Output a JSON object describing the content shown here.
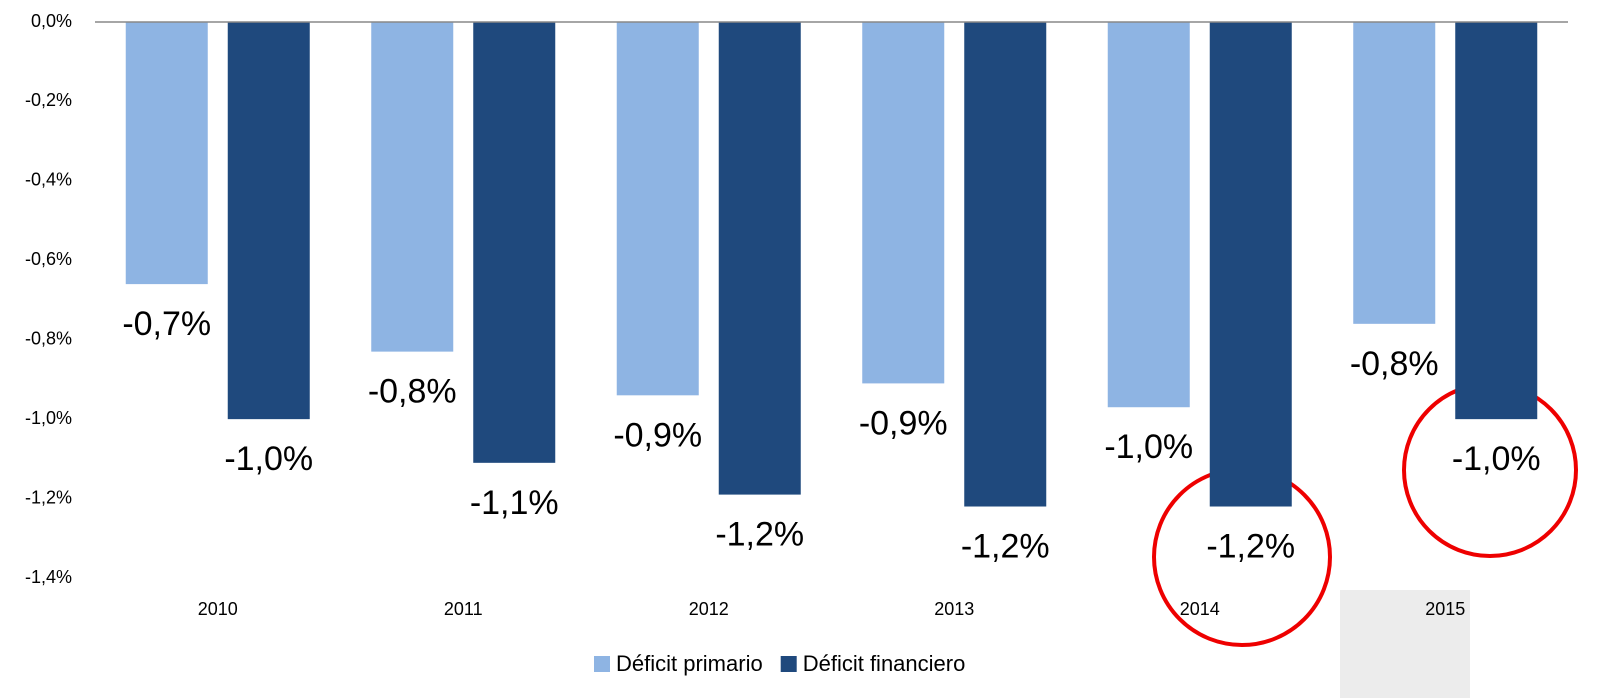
{
  "chart_data": {
    "type": "bar",
    "categories": [
      "2010",
      "2011",
      "2012",
      "2013",
      "2014",
      "2015"
    ],
    "series": [
      {
        "name": "Déficit primario",
        "color": "#8eb4e3",
        "values": [
          -0.66,
          -0.83,
          -0.94,
          -0.91,
          -0.97,
          -0.76
        ],
        "value_labels": [
          "-0,7%",
          "-0,8%",
          "-0,9%",
          "-0,9%",
          "-1,0%",
          "-0,8%"
        ]
      },
      {
        "name": "Déficit financiero",
        "color": "#1f497d",
        "values": [
          -1.0,
          -1.11,
          -1.19,
          -1.22,
          -1.22,
          -1.0
        ],
        "value_labels": [
          "-1,0%",
          "-1,1%",
          "-1,2%",
          "-1,2%",
          "-1,2%",
          "-1,0%"
        ]
      }
    ],
    "ylim": [
      -1.4,
      0
    ],
    "yticks": [
      {
        "value": 0,
        "label": "0,0%"
      },
      {
        "value": -0.2,
        "label": "-0,2%"
      },
      {
        "value": -0.4,
        "label": "-0,4%"
      },
      {
        "value": -0.6,
        "label": "-0,6%"
      },
      {
        "value": -0.8,
        "label": "-0,8%"
      },
      {
        "value": -1.0,
        "label": "-1,0%"
      },
      {
        "value": -1.2,
        "label": "-1,2%"
      },
      {
        "value": -1.4,
        "label": "-1,4%"
      }
    ],
    "legend": "bottom"
  }
}
